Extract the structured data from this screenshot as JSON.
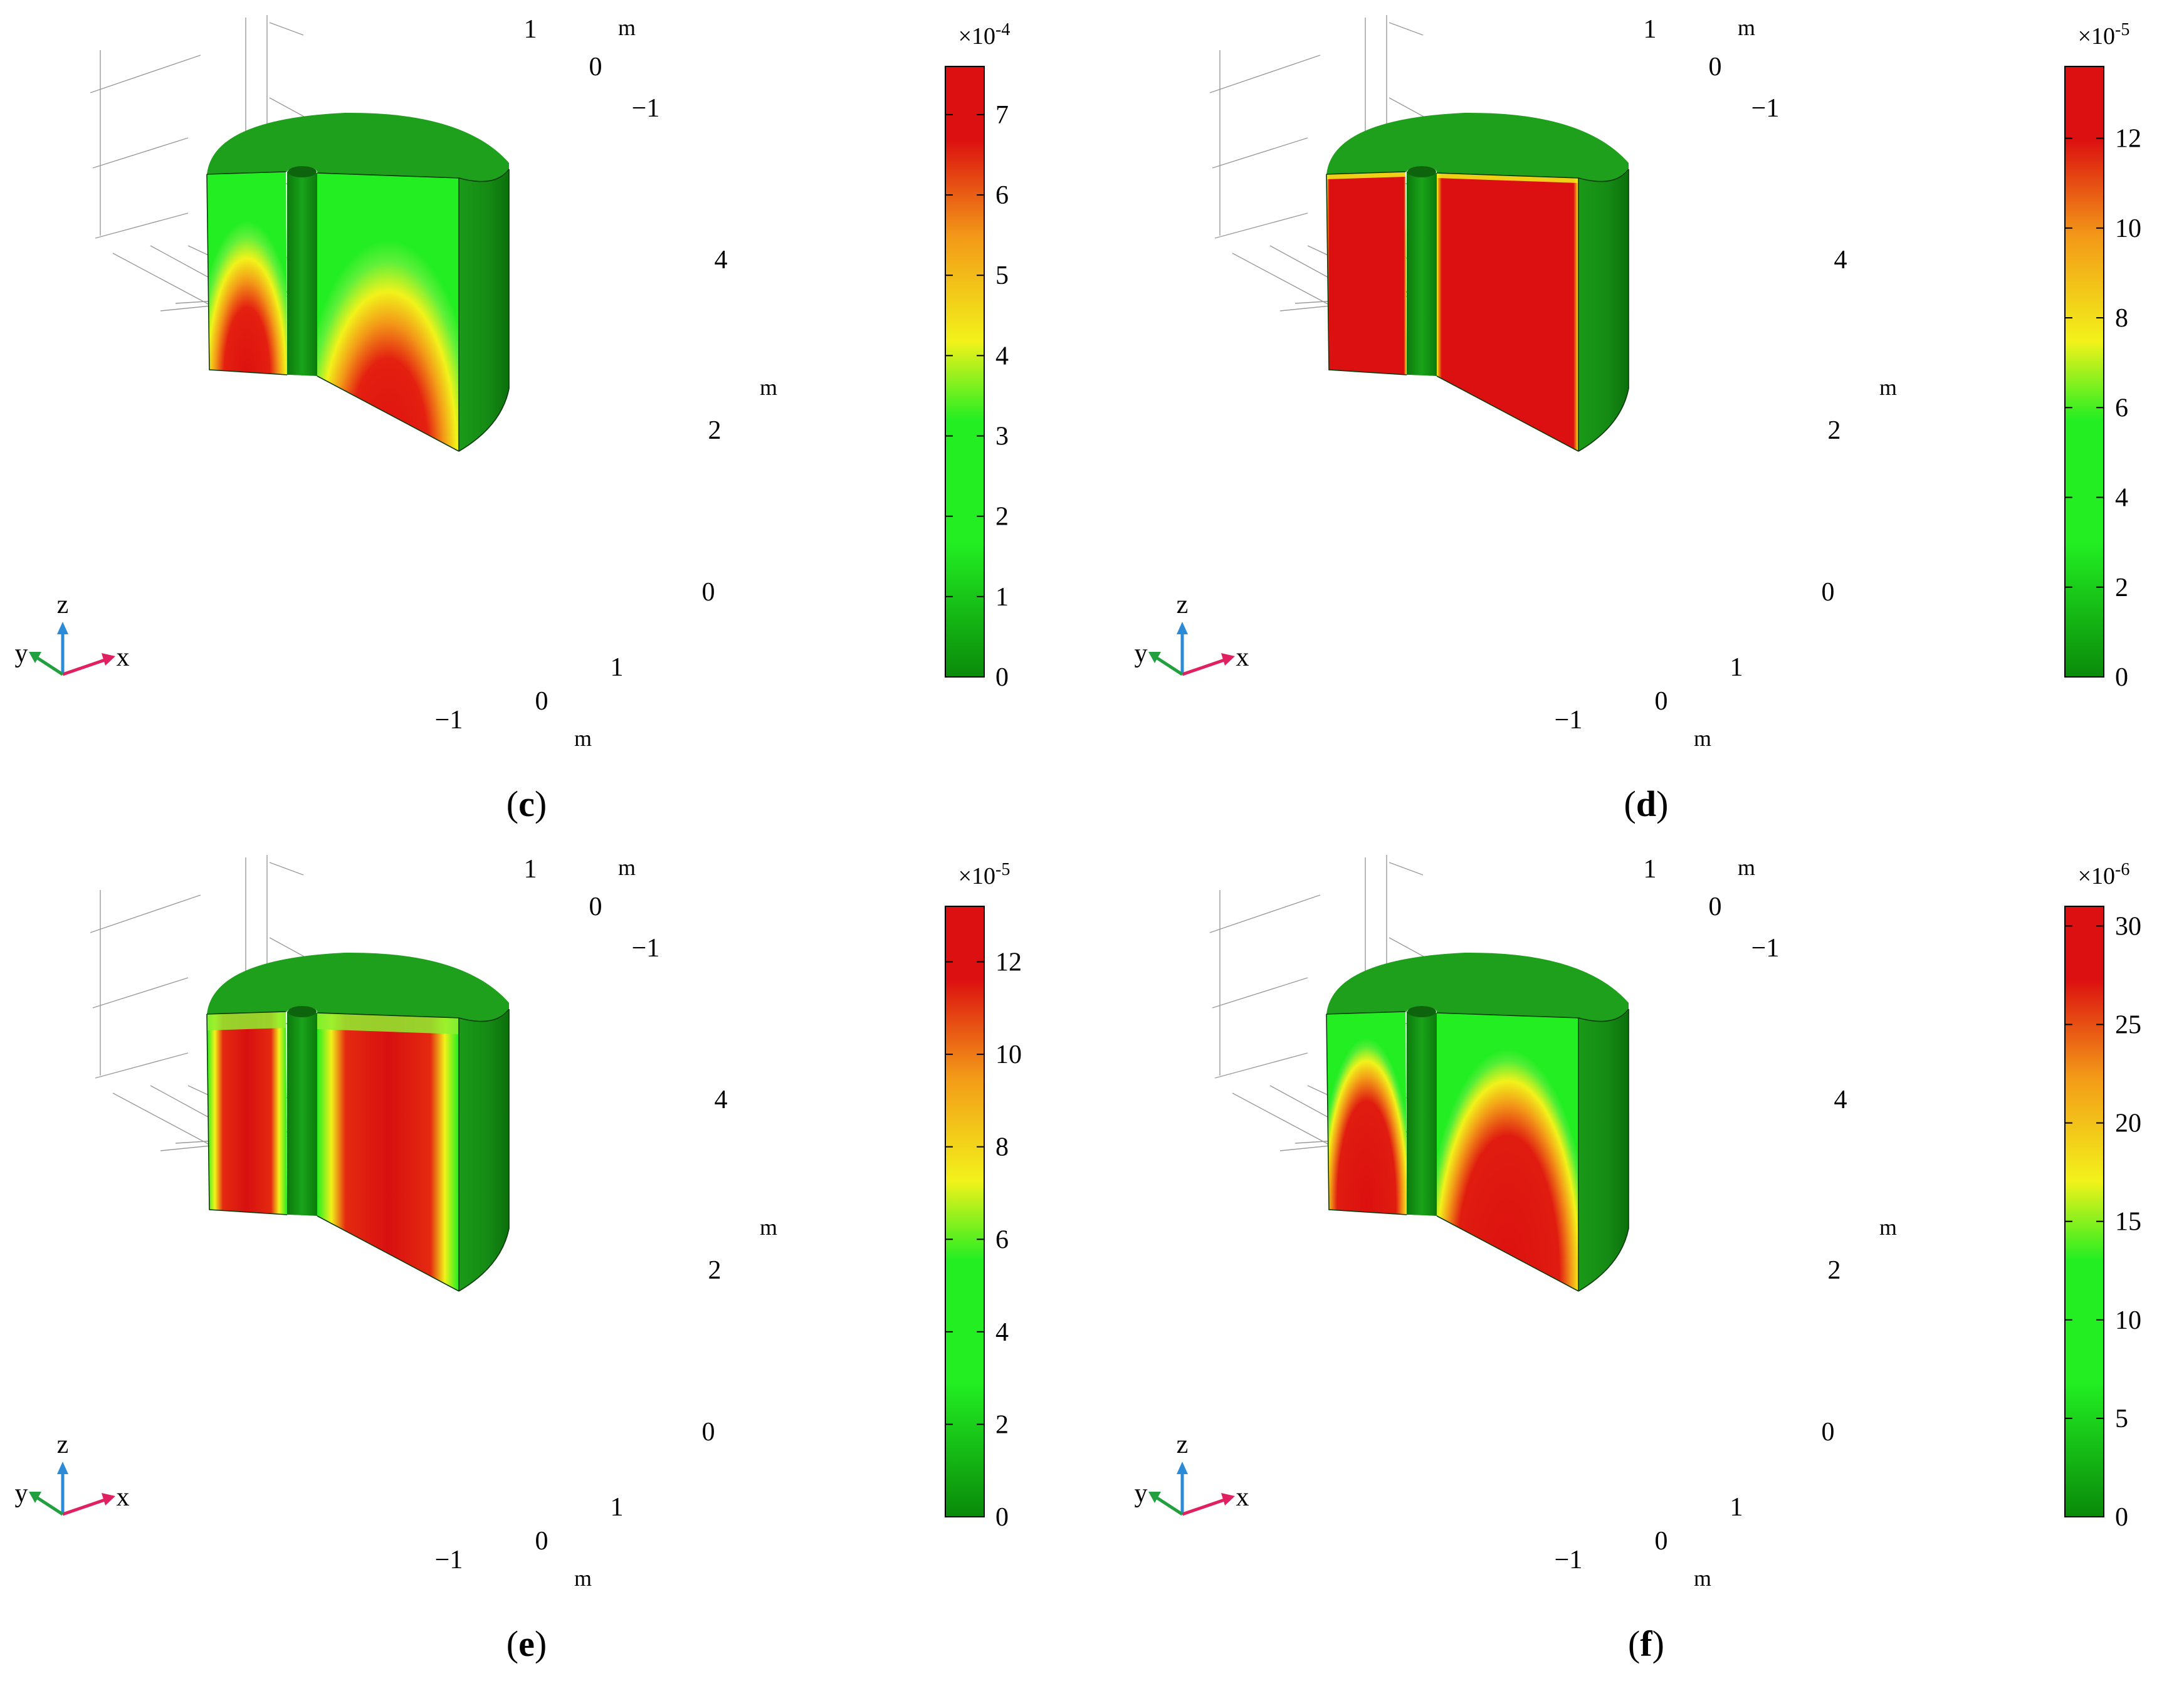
{
  "colors": {
    "green_dark": "#0a8a0a",
    "green_bright": "#22ee22",
    "yellow": "#f2f21a",
    "orange": "#f39a18",
    "red": "#dc1010",
    "grid": "#9a9a9a"
  },
  "triad": {
    "x": "x",
    "y": "y",
    "z": "z"
  },
  "panels": [
    {
      "key": "c",
      "caption": "c",
      "unit": "m",
      "ticks_horizontal_back": [
        "1",
        "0",
        "−1"
      ],
      "ticks_horizontal_front": [
        "−1",
        "0",
        "1"
      ],
      "ticks_z": [
        "0",
        "2",
        "4"
      ],
      "colorbar": {
        "exponent": "×10",
        "exponent_power": "-4",
        "ticks": [
          "0",
          "1",
          "2",
          "3",
          "4",
          "5",
          "6",
          "7"
        ],
        "min": 0,
        "max": 7.6
      },
      "pattern": "parabolic"
    },
    {
      "key": "d",
      "caption": "d",
      "unit": "m",
      "ticks_horizontal_back": [
        "1",
        "0",
        "−1"
      ],
      "ticks_horizontal_front": [
        "−1",
        "0",
        "1"
      ],
      "ticks_z": [
        "0",
        "2",
        "4"
      ],
      "colorbar": {
        "exponent": "×10",
        "exponent_power": "-5",
        "ticks": [
          "0",
          "2",
          "4",
          "6",
          "8",
          "10",
          "12"
        ],
        "min": 0,
        "max": 13.6
      },
      "pattern": "uniform"
    },
    {
      "key": "e",
      "caption": "e",
      "unit": "m",
      "ticks_horizontal_back": [
        "1",
        "0",
        "−1"
      ],
      "ticks_horizontal_front": [
        "−1",
        "0",
        "1"
      ],
      "ticks_z": [
        "0",
        "2",
        "4"
      ],
      "colorbar": {
        "exponent": "×10",
        "exponent_power": "-5",
        "ticks": [
          "0",
          "2",
          "4",
          "6",
          "8",
          "10",
          "12"
        ],
        "min": 0,
        "max": 13.2
      },
      "pattern": "rounded"
    },
    {
      "key": "f",
      "caption": "f",
      "unit": "m",
      "ticks_horizontal_back": [
        "1",
        "0",
        "−1"
      ],
      "ticks_horizontal_front": [
        "−1",
        "0",
        "1"
      ],
      "ticks_z": [
        "0",
        "2",
        "4"
      ],
      "colorbar": {
        "exponent": "×10",
        "exponent_power": "-6",
        "ticks": [
          "0",
          "5",
          "10",
          "15",
          "20",
          "25",
          "30"
        ],
        "min": 0,
        "max": 31
      },
      "pattern": "parabolic_soft"
    }
  ]
}
